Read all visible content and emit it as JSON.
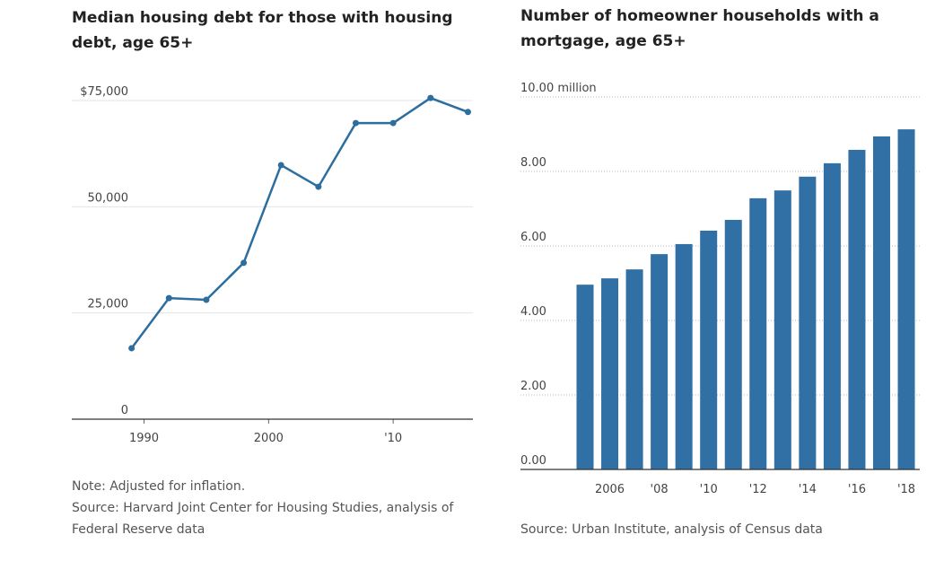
{
  "chart_data": [
    {
      "type": "line",
      "title": "Median housing debt for those with housing debt, age 65+",
      "note": "Note: Adjusted for inflation.",
      "source": "Source: Harvard Joint Center for Housing Studies, analysis of Federal Reserve data",
      "x": [
        1989,
        1992,
        1995,
        1998,
        2001,
        2004,
        2007,
        2010,
        2013,
        2016
      ],
      "values": [
        16700,
        28500,
        28100,
        36800,
        59800,
        54700,
        69700,
        69700,
        75600,
        72300
      ],
      "color": "#2c6e9e",
      "xlim": [
        1984.2,
        2016.4
      ],
      "xticks": [
        1990,
        2000,
        {
          "value": 2010,
          "label": "'10"
        }
      ],
      "ylim": [
        0,
        75000
      ],
      "yticks": [
        0,
        {
          "value": 25000,
          "label": "25,000"
        },
        {
          "value": 50000,
          "label": "50,000"
        },
        {
          "value": 75000,
          "label": "$75,000"
        }
      ],
      "grid": true
    },
    {
      "type": "bar",
      "title": "Number of homeowner households with a mortgage, age 65+",
      "source": "Source: Urban Institute, analysis of Census data",
      "categories": [
        null,
        "2006",
        null,
        "'08",
        null,
        "'10",
        null,
        "'12",
        null,
        "'14",
        null,
        "'16",
        null,
        "'18"
      ],
      "values": [
        4.96,
        5.13,
        5.37,
        5.78,
        6.05,
        6.41,
        6.7,
        7.28,
        7.49,
        7.86,
        8.22,
        8.58,
        8.94,
        9.13
      ],
      "color": "#3070a5",
      "ylim": [
        0,
        10
      ],
      "yticks": [
        {
          "value": 0,
          "label": "0.00"
        },
        {
          "value": 2,
          "label": "2.00"
        },
        {
          "value": 4,
          "label": "4.00"
        },
        {
          "value": 6,
          "label": "6.00"
        },
        {
          "value": 8,
          "label": "8.00"
        },
        {
          "value": 10,
          "label": "10.00 million"
        }
      ],
      "grid": true
    }
  ]
}
